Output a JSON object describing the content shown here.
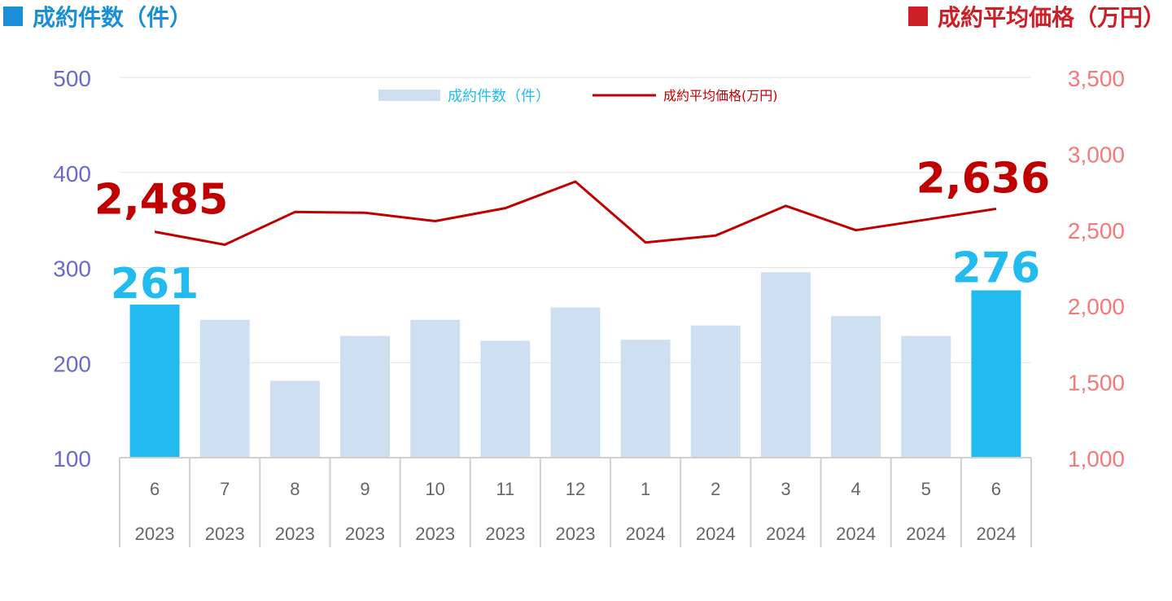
{
  "header": {
    "left_title": "成約件数（件）",
    "right_title": "成約平均価格（万円）"
  },
  "colors": {
    "bar_normal": "#cfdff2",
    "bar_highlight": "#22bbef",
    "line": "#c00000",
    "left_axis": "#6a6acd",
    "right_axis": "#f47a7a",
    "header_left": "#1a8fd8",
    "header_right": "#cc1f26"
  },
  "chart_data": {
    "type": "bar",
    "categories": [
      "6",
      "7",
      "8",
      "9",
      "10",
      "11",
      "12",
      "1",
      "2",
      "3",
      "4",
      "5",
      "6"
    ],
    "years": [
      "2023",
      "2023",
      "2023",
      "2023",
      "2023",
      "2023",
      "2023",
      "2024",
      "2024",
      "2024",
      "2024",
      "2024",
      "2024"
    ],
    "series": [
      {
        "name": "成約件数（件）",
        "type": "bar",
        "axis": "left",
        "values": [
          261,
          245,
          181,
          228,
          245,
          223,
          258,
          224,
          239,
          295,
          249,
          228,
          276
        ],
        "highlight": [
          0,
          12
        ]
      },
      {
        "name": "成約平均価格(万円)",
        "type": "line",
        "axis": "right",
        "values": [
          2485,
          2400,
          2615,
          2610,
          2555,
          2640,
          2815,
          2415,
          2460,
          2655,
          2495,
          2565,
          2636
        ]
      }
    ],
    "data_labels": {
      "bar_first": "261",
      "bar_last": "276",
      "line_first": "2,485",
      "line_last": "2,636"
    },
    "y_left": {
      "ylim": [
        100,
        500
      ],
      "ticks": [
        "100",
        "200",
        "300",
        "400",
        "500"
      ]
    },
    "y_right": {
      "ylim": [
        1000,
        3500
      ],
      "ticks": [
        "1,000",
        "1,500",
        "2,000",
        "2,500",
        "3,000",
        "3,500"
      ]
    },
    "grid": true,
    "legend": "top-center"
  }
}
